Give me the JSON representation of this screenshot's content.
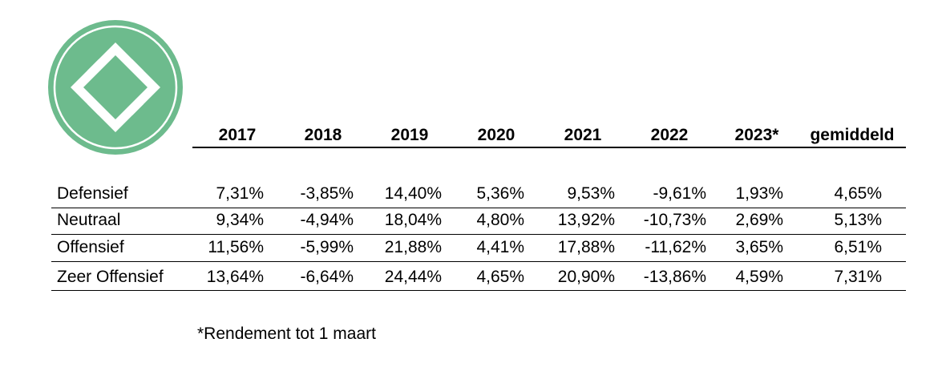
{
  "logo": {
    "name": "green-diamond-cross-logo",
    "colors": {
      "primary": "#6dbb8d",
      "ring": "#ffffff"
    }
  },
  "table": {
    "headers": [
      "2017",
      "2018",
      "2019",
      "2020",
      "2021",
      "2022",
      "2023*",
      "gemiddeld"
    ],
    "rows": [
      {
        "label": "Defensief",
        "values": [
          "7,31%",
          "-3,85%",
          "14,40%",
          "5,36%",
          "9,53%",
          "-9,61%",
          "1,93%",
          "4,65%"
        ]
      },
      {
        "label": "Neutraal",
        "values": [
          "9,34%",
          "-4,94%",
          "18,04%",
          "4,80%",
          "13,92%",
          "-10,73%",
          "2,69%",
          "5,13%"
        ]
      },
      {
        "label": "Offensief",
        "values": [
          "11,56%",
          "-5,99%",
          "21,88%",
          "4,41%",
          "17,88%",
          "-11,62%",
          "3,65%",
          "6,51%"
        ]
      },
      {
        "label": "Zeer Offensief",
        "values": [
          "13,64%",
          "-6,64%",
          "24,44%",
          "4,65%",
          "20,90%",
          "-13,86%",
          "4,59%",
          "7,31%"
        ]
      }
    ]
  },
  "footnote": "*Rendement tot 1 maart"
}
